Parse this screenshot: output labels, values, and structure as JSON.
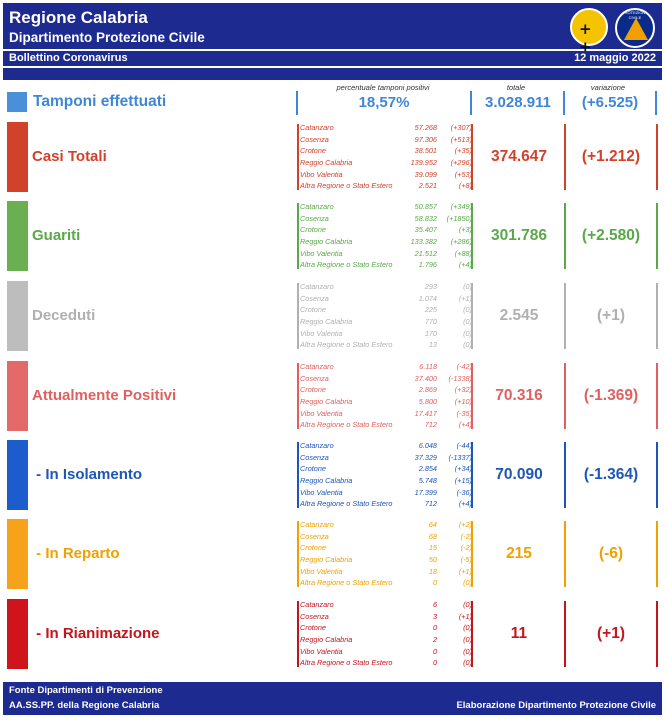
{
  "header": {
    "title": "Regione Calabria",
    "subtitle": "Dipartimento Protezione Civile",
    "bulletin": "Bollettino Coronavirus",
    "date": "12 maggio 2022",
    "logo1_text": "+ +",
    "logo2_text": "PROTEZIONE CIVILE"
  },
  "columns": {
    "percent_label": "percentuale tamponi positivi",
    "total_label": "totale",
    "var_label": "variazione"
  },
  "tamponi": {
    "label": "Tamponi effettuati",
    "percent": "18,57%",
    "total": "3.028.911",
    "variation": "(+6.525)",
    "color": "#3f86d6"
  },
  "blocks": [
    {
      "label": "Casi Totali",
      "total": "374.647",
      "variation": "(+1.212)",
      "color": "#d0432a",
      "side": "#d0432a",
      "rows": [
        {
          "name": "Catanzaro",
          "value": "57.268",
          "delta": "(+307)"
        },
        {
          "name": "Cosenza",
          "value": "97.306",
          "delta": "(+513)"
        },
        {
          "name": "Crotone",
          "value": "38.501",
          "delta": "(+35)"
        },
        {
          "name": "Reggio Calabria",
          "value": "139.952",
          "delta": "(+296)"
        },
        {
          "name": "Vibo Valentia",
          "value": "39.099",
          "delta": "(+53)"
        },
        {
          "name": "Altra Regione o Stato Estero",
          "value": "2.521",
          "delta": "(+8)"
        }
      ]
    },
    {
      "label": "Guariti",
      "total": "301.786",
      "variation": "(+2.580)",
      "color": "#5aa84a",
      "side": "#6aaf52",
      "rows": [
        {
          "name": "Catanzaro",
          "value": "50.857",
          "delta": "(+349)"
        },
        {
          "name": "Cosenza",
          "value": "58.832",
          "delta": "(+1850)"
        },
        {
          "name": "Crotone",
          "value": "35.407",
          "delta": "(+3)"
        },
        {
          "name": "Reggio Calabria",
          "value": "133.382",
          "delta": "(+286)"
        },
        {
          "name": "Vibo Valentia",
          "value": "21.512",
          "delta": "(+88)"
        },
        {
          "name": "Altra Regione o Stato Estero",
          "value": "1.796",
          "delta": "(+4)"
        }
      ]
    },
    {
      "label": "Deceduti",
      "total": "2.545",
      "variation": "(+1)",
      "color": "#b0b0b0",
      "side": "#bdbdbd",
      "rows": [
        {
          "name": "Catanzaro",
          "value": "293",
          "delta": "(0)"
        },
        {
          "name": "Cosenza",
          "value": "1.074",
          "delta": "(+1)"
        },
        {
          "name": "Crotone",
          "value": "225",
          "delta": "(0)"
        },
        {
          "name": "Reggio Calabria",
          "value": "770",
          "delta": "(0)"
        },
        {
          "name": "Vibo Valentia",
          "value": "170",
          "delta": "(0)"
        },
        {
          "name": "Altra Regione o Stato Estero",
          "value": "13",
          "delta": "(0)"
        }
      ]
    },
    {
      "label": "Attualmente Positivi",
      "total": "70.316",
      "variation": "(-1.369)",
      "color": "#e06060",
      "side": "#e46a6a",
      "rows": [
        {
          "name": "Catanzaro",
          "value": "6.118",
          "delta": "(-42)"
        },
        {
          "name": "Cosenza",
          "value": "37.400",
          "delta": "(-1338)"
        },
        {
          "name": "Crotone",
          "value": "2.869",
          "delta": "(+32)"
        },
        {
          "name": "Reggio Calabria",
          "value": "5.800",
          "delta": "(+10)"
        },
        {
          "name": "Vibo Valentia",
          "value": "17.417",
          "delta": "(-35)"
        },
        {
          "name": "Altra Regione o Stato Estero",
          "value": "712",
          "delta": "(+4)"
        }
      ]
    },
    {
      "label": " - In Isolamento",
      "total": "70.090",
      "variation": "(-1.364)",
      "color": "#1e56b8",
      "side": "#1d5ccc",
      "rows": [
        {
          "name": "Catanzaro",
          "value": "6.048",
          "delta": "(-44)"
        },
        {
          "name": "Cosenza",
          "value": "37.329",
          "delta": "(-1337)"
        },
        {
          "name": "Crotone",
          "value": "2.854",
          "delta": "(+34)"
        },
        {
          "name": "Reggio Calabria",
          "value": "5.748",
          "delta": "(+15)"
        },
        {
          "name": "Vibo Valentia",
          "value": "17.399",
          "delta": "(-36)"
        },
        {
          "name": "Altra Regione o Stato Estero",
          "value": "712",
          "delta": "(+4)"
        }
      ]
    },
    {
      "label": " - In Reparto",
      "total": "215",
      "variation": "(-6)",
      "color": "#f0a000",
      "side": "#f7a21b",
      "rows": [
        {
          "name": "Catanzaro",
          "value": "64",
          "delta": "(+2)"
        },
        {
          "name": "Cosenza",
          "value": "68",
          "delta": "(-2)"
        },
        {
          "name": "Crotone",
          "value": "15",
          "delta": "(-2)"
        },
        {
          "name": "Reggio Calabria",
          "value": "50",
          "delta": "(-5)"
        },
        {
          "name": "Vibo Valentia",
          "value": "18",
          "delta": "(+1)"
        },
        {
          "name": "Altra Regione o Stato Estero",
          "value": "0",
          "delta": "(0)"
        }
      ]
    },
    {
      "label": " - In Rianimazione",
      "total": "11",
      "variation": "(+1)",
      "color": "#c4141c",
      "side": "#d0141c",
      "rows": [
        {
          "name": "Catanzaro",
          "value": "6",
          "delta": "(0)"
        },
        {
          "name": "Cosenza",
          "value": "3",
          "delta": "(+1)"
        },
        {
          "name": "Crotone",
          "value": "0",
          "delta": "(0)"
        },
        {
          "name": "Reggio Calabria",
          "value": "2",
          "delta": "(0)"
        },
        {
          "name": "Vibo Valentia",
          "value": "0",
          "delta": "(0)"
        },
        {
          "name": "Altra Regione o Stato Estero",
          "value": "0",
          "delta": "(0)"
        }
      ]
    }
  ],
  "footer": {
    "line1": "Fonte Dipartimenti di Prevenzione",
    "line2": "AA.SS.PP.  della Regione Calabria",
    "right": "Elaborazione Dipartimento Protezione Civile"
  }
}
